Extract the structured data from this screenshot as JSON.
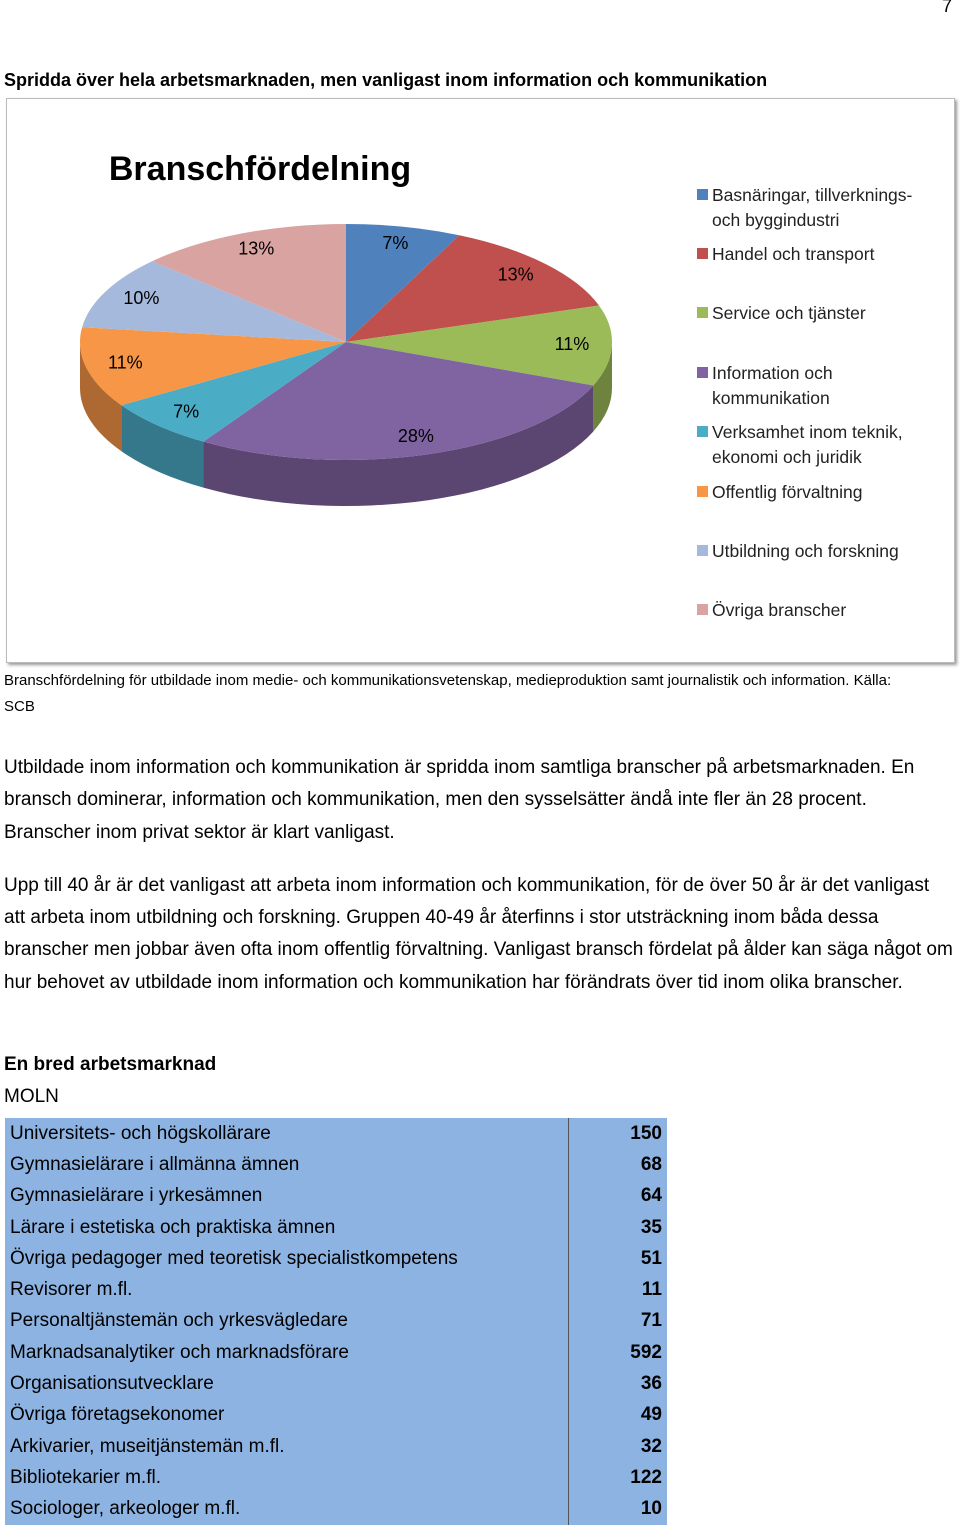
{
  "page_number": "7",
  "heading": "Spridda över hela arbetsmarknaden, men vanligast inom information och kommunikation",
  "chart_data": {
    "type": "pie",
    "title": "Branschfördelning",
    "categories": [
      "Basnäringar, tillverknings- och byggindustri",
      "Handel och transport",
      "Service och tjänster",
      "Information och kommunikation",
      "Verksamhet inom teknik, ekonomi och juridik",
      "Offentlig förvaltning",
      "Utbildning och forskning",
      "Övriga branscher"
    ],
    "values": [
      7,
      13,
      11,
      28,
      7,
      11,
      10,
      13
    ],
    "value_labels": [
      "7%",
      "13%",
      "11%",
      "28%",
      "7%",
      "11%",
      "10%",
      "13%"
    ],
    "colors": [
      "#4f81bd",
      "#c0504d",
      "#9bbb59",
      "#8064a2",
      "#4bacc6",
      "#f79646",
      "#a5b9dc",
      "#d9a3a2"
    ]
  },
  "caption": "Branschfördelning för utbildade inom medie- och kommunikationsvetenskap, medieproduktion samt journalistik och information. Källa: SCB",
  "paragraphs": [
    "Utbildade inom information och kommunikation är spridda inom samtliga branscher på arbetsmarknaden. En bransch dominerar, information och kommunikation, men den sysselsätter ändå inte fler än 28 procent. Branscher inom privat sektor är klart vanligast.",
    "Upp till 40 år är det vanligast att arbeta inom information och kommunikation, för de över 50 år är det vanligast att arbeta inom utbildning och forskning. Gruppen 40-49 år återfinns i stor utsträckning inom båda dessa branscher men jobbar även ofta inom offentlig förvaltning. Vanligast bransch fördelat på ålder kan säga något om hur behovet av utbildade inom information och kommunikation har förändrats över tid inom olika branscher."
  ],
  "section": {
    "title": "En bred arbetsmarknad",
    "subtitle": "MOLN"
  },
  "table": {
    "rows": [
      [
        "Universitets- och högskollärare",
        150
      ],
      [
        "Gymnasielärare i allmänna ämnen",
        68
      ],
      [
        "Gymnasielärare i yrkesämnen",
        64
      ],
      [
        "Lärare i estetiska och praktiska ämnen",
        35
      ],
      [
        "Övriga pedagoger med teoretisk specialistkompetens",
        51
      ],
      [
        "Revisorer m.fl.",
        11
      ],
      [
        "Personaltjänstemän och yrkesvägledare",
        71
      ],
      [
        "Marknadsanalytiker och marknadsförare",
        592
      ],
      [
        "Organisationsutvecklare",
        36
      ],
      [
        "Övriga företagsekonomer",
        49
      ],
      [
        "Arkivarier, museitjänstemän m.fl.",
        32
      ],
      [
        "Bibliotekarier m.fl.",
        122
      ],
      [
        "Sociologer, arkeologer m.fl.",
        10
      ]
    ]
  }
}
